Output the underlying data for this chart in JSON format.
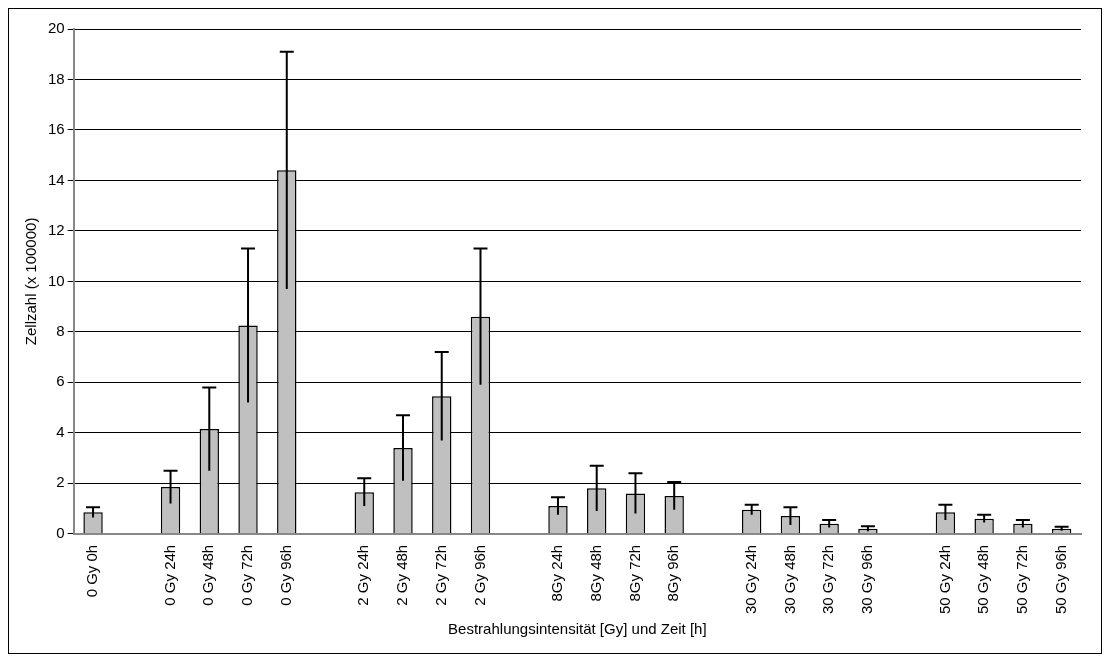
{
  "chart_data": {
    "type": "bar",
    "xlabel": "Bestrahlungsintensität [Gy] und Zeit [h]",
    "ylabel": "Zellzahl (x 100000)",
    "categories": [
      "0 Gy 0h",
      null,
      "0 Gy 24h",
      "0 Gy 48h",
      "0 Gy 72h",
      "0 Gy 96h",
      null,
      "2 Gy 24h",
      "2 Gy 48h",
      "2 Gy 72h",
      "2 Gy 96h",
      null,
      "8Gy 24h",
      "8Gy 48h",
      "8Gy 72h",
      "8Gy 96h",
      null,
      "30 Gy 24h",
      "30 Gy 48h",
      "30 Gy 72h",
      "30 Gy 96h",
      null,
      "50 Gy 24h",
      "50 Gy 48h",
      "50 Gy 72h",
      "50 Gy 96h"
    ],
    "values": [
      0.85,
      null,
      1.85,
      4.15,
      8.25,
      14.4,
      null,
      1.65,
      3.4,
      5.45,
      8.6,
      null,
      1.1,
      1.8,
      1.6,
      1.5,
      null,
      0.95,
      0.7,
      0.4,
      0.2,
      null,
      0.85,
      0.6,
      0.4,
      0.2
    ],
    "errors": [
      0.2,
      null,
      0.65,
      1.65,
      3.05,
      4.7,
      null,
      0.55,
      1.3,
      1.75,
      2.7,
      null,
      0.35,
      0.9,
      0.8,
      0.55,
      null,
      0.2,
      0.35,
      0.15,
      0.1,
      null,
      0.3,
      0.15,
      0.15,
      0.08
    ],
    "color": "#c0c0c0",
    "ylim": [
      0,
      20
    ],
    "yticks": [
      0,
      2,
      4,
      6,
      8,
      10,
      12,
      14,
      16,
      18,
      20
    ],
    "grid": "y",
    "legend": false
  }
}
